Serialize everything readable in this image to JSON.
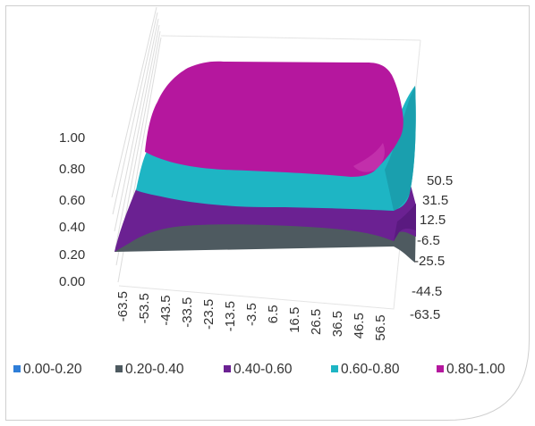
{
  "chart_data": {
    "type": "surface",
    "title": "",
    "xlabel": "",
    "ylabel": "",
    "zlabel": "",
    "z_ticks": [
      "0.00",
      "0.20",
      "0.40",
      "0.60",
      "0.80",
      "1.00"
    ],
    "x_ticks": [
      "-63.5",
      "-53.5",
      "-43.5",
      "-33.5",
      "-23.5",
      "-13.5",
      "-3.5",
      "6.5",
      "16.5",
      "26.5",
      "36.5",
      "46.5",
      "56.5"
    ],
    "y_ticks": [
      "50.5",
      "31.5",
      "12.5",
      "-6.5",
      "-25.5",
      "-44.5",
      "-63.5"
    ],
    "zlim": [
      0,
      1
    ],
    "xlim": [
      -63.5,
      56.5
    ],
    "ylim": [
      -63.5,
      50.5
    ],
    "legend_position": "bottom",
    "bands": [
      {
        "name": "0.00-0.20",
        "range": [
          0.0,
          0.2
        ],
        "color": "#2f7ed8"
      },
      {
        "name": "0.20-0.40",
        "range": [
          0.2,
          0.4
        ],
        "color": "#4e5a60"
      },
      {
        "name": "0.40-0.60",
        "range": [
          0.4,
          0.6
        ],
        "color": "#6b2192"
      },
      {
        "name": "0.60-0.80",
        "range": [
          0.6,
          0.8
        ],
        "color": "#1eb5c4"
      },
      {
        "name": "0.80-1.00",
        "range": [
          0.8,
          1.0
        ],
        "color": "#b5179e"
      }
    ]
  }
}
